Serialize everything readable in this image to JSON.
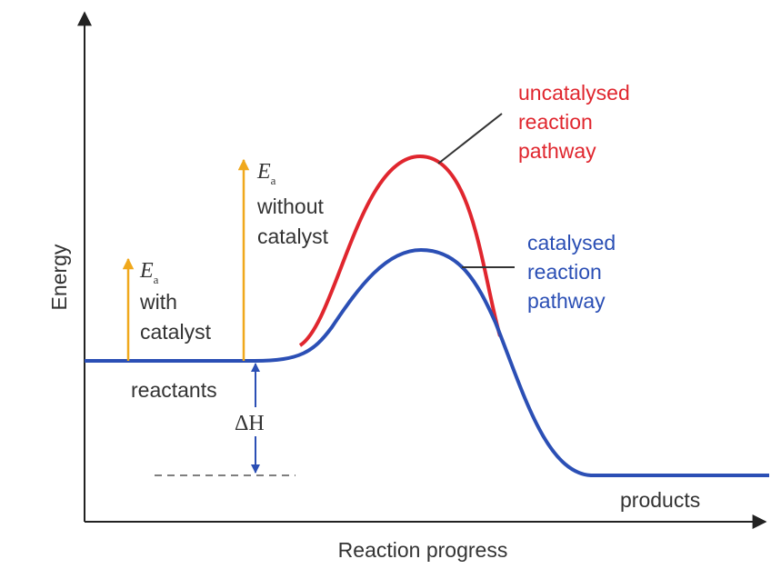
{
  "axes": {
    "x_label": "Reaction progress",
    "y_label": "Energy"
  },
  "labels": {
    "uncatalysed": [
      "uncatalysed",
      "reaction",
      "pathway"
    ],
    "catalysed": [
      "catalysed",
      "reaction",
      "pathway"
    ],
    "ea_symbol": "E",
    "ea_subscript": "a",
    "ea_without": [
      "without",
      "catalyst"
    ],
    "ea_with": [
      "with",
      "catalyst"
    ],
    "reactants": "reactants",
    "products": "products",
    "delta_h": "ΔH"
  },
  "colors": {
    "uncatalysed": "#e0262e",
    "catalysed": "#2b4fb5",
    "ea_arrow": "#f0a81c",
    "text": "#333333",
    "axis": "#222222"
  }
}
